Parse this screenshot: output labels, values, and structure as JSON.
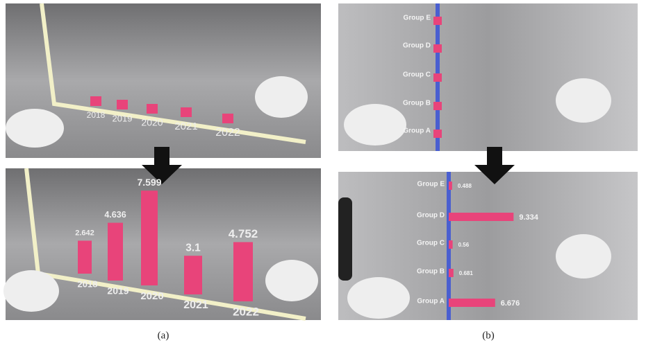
{
  "panels": [
    {
      "caption": "(a)",
      "orientation": "vertical",
      "color": "#e8447a",
      "categories": [
        "2018",
        "2019",
        "2020",
        "2021",
        "2022"
      ],
      "values": [
        2.642,
        4.636,
        7.599,
        3.1,
        4.752
      ]
    },
    {
      "caption": "(b)",
      "orientation": "horizontal",
      "color": "#e8447a",
      "categories": [
        "Group A",
        "Group B",
        "Group C",
        "Group D",
        "Group E"
      ],
      "values": [
        6.676,
        0.681,
        0.56,
        9.334,
        0.488
      ]
    }
  ]
}
